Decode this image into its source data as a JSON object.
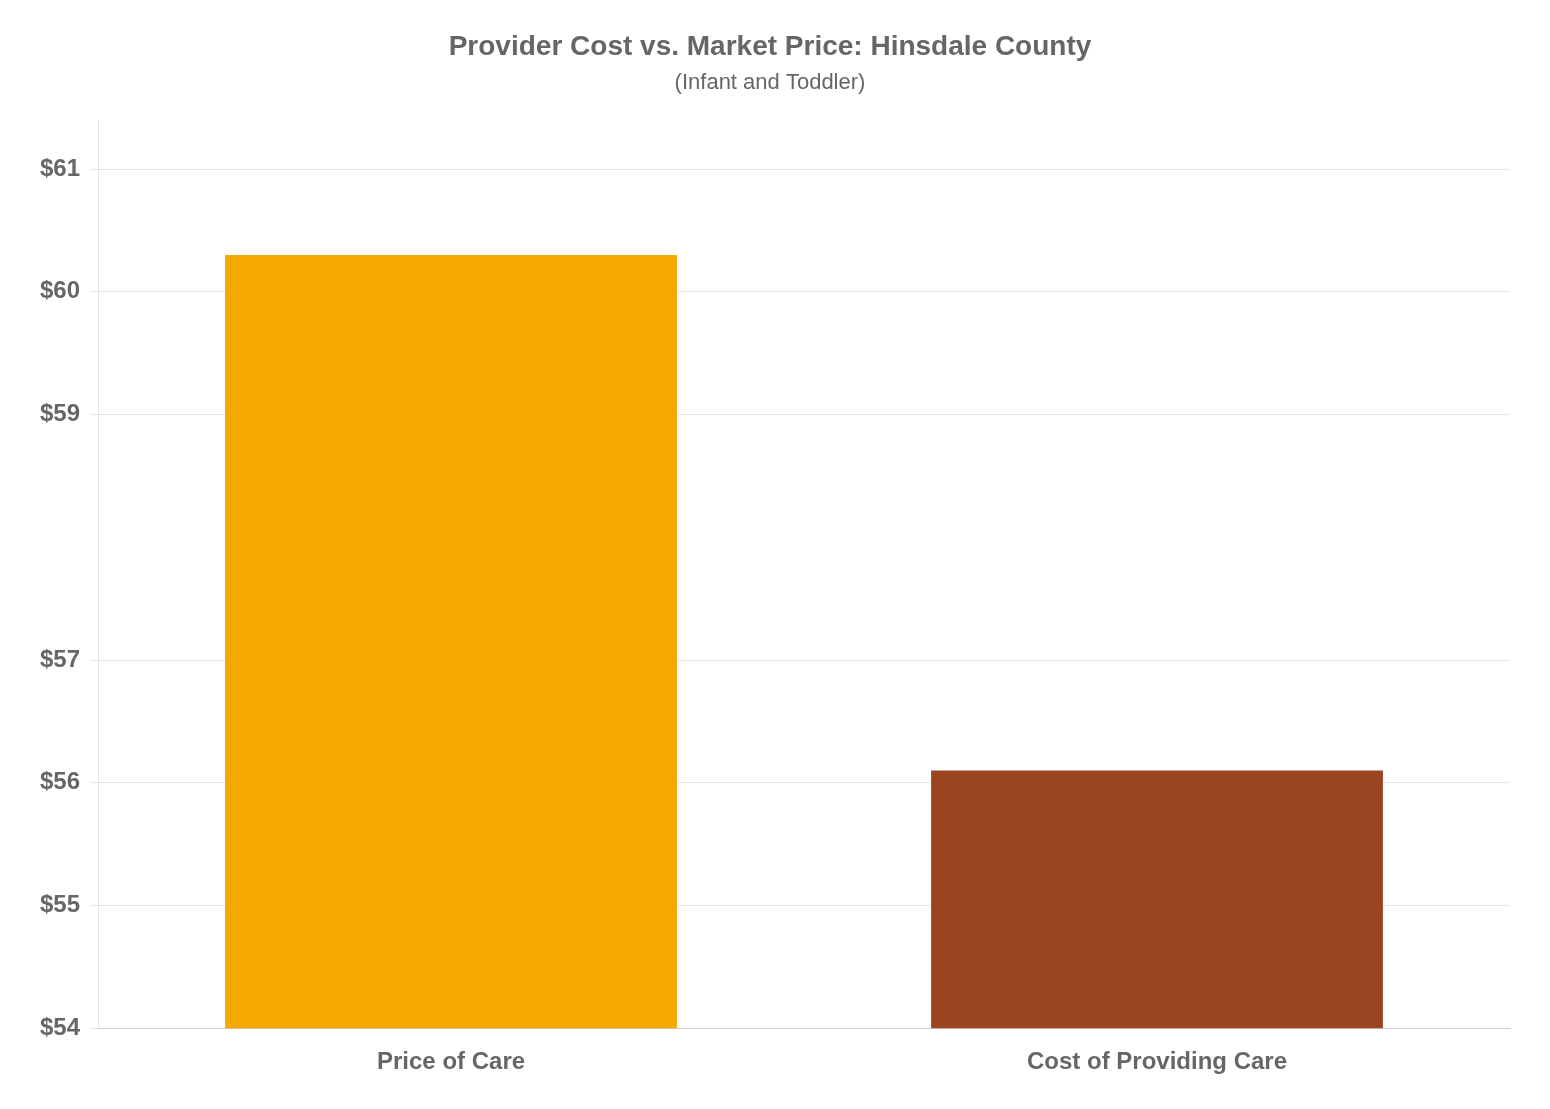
{
  "chart_data": {
    "type": "bar",
    "title": "Provider Cost vs. Market Price: Hinsdale County",
    "subtitle": "(Infant and Toddler)",
    "categories": [
      "Price of Care",
      "Cost of Providing Care"
    ],
    "values": [
      60.3,
      56.1
    ],
    "colors": [
      "#F5A800",
      "#9B4520"
    ],
    "ylim": [
      54,
      61.4
    ],
    "yticks": [
      {
        "value": 54,
        "label": "$54"
      },
      {
        "value": 55,
        "label": "$55"
      },
      {
        "value": 56,
        "label": "$56"
      },
      {
        "value": 57,
        "label": "$57"
      },
      {
        "value": 59,
        "label": "$59"
      },
      {
        "value": 60,
        "label": "$60"
      },
      {
        "value": 61,
        "label": "$61"
      }
    ],
    "grid": true
  }
}
